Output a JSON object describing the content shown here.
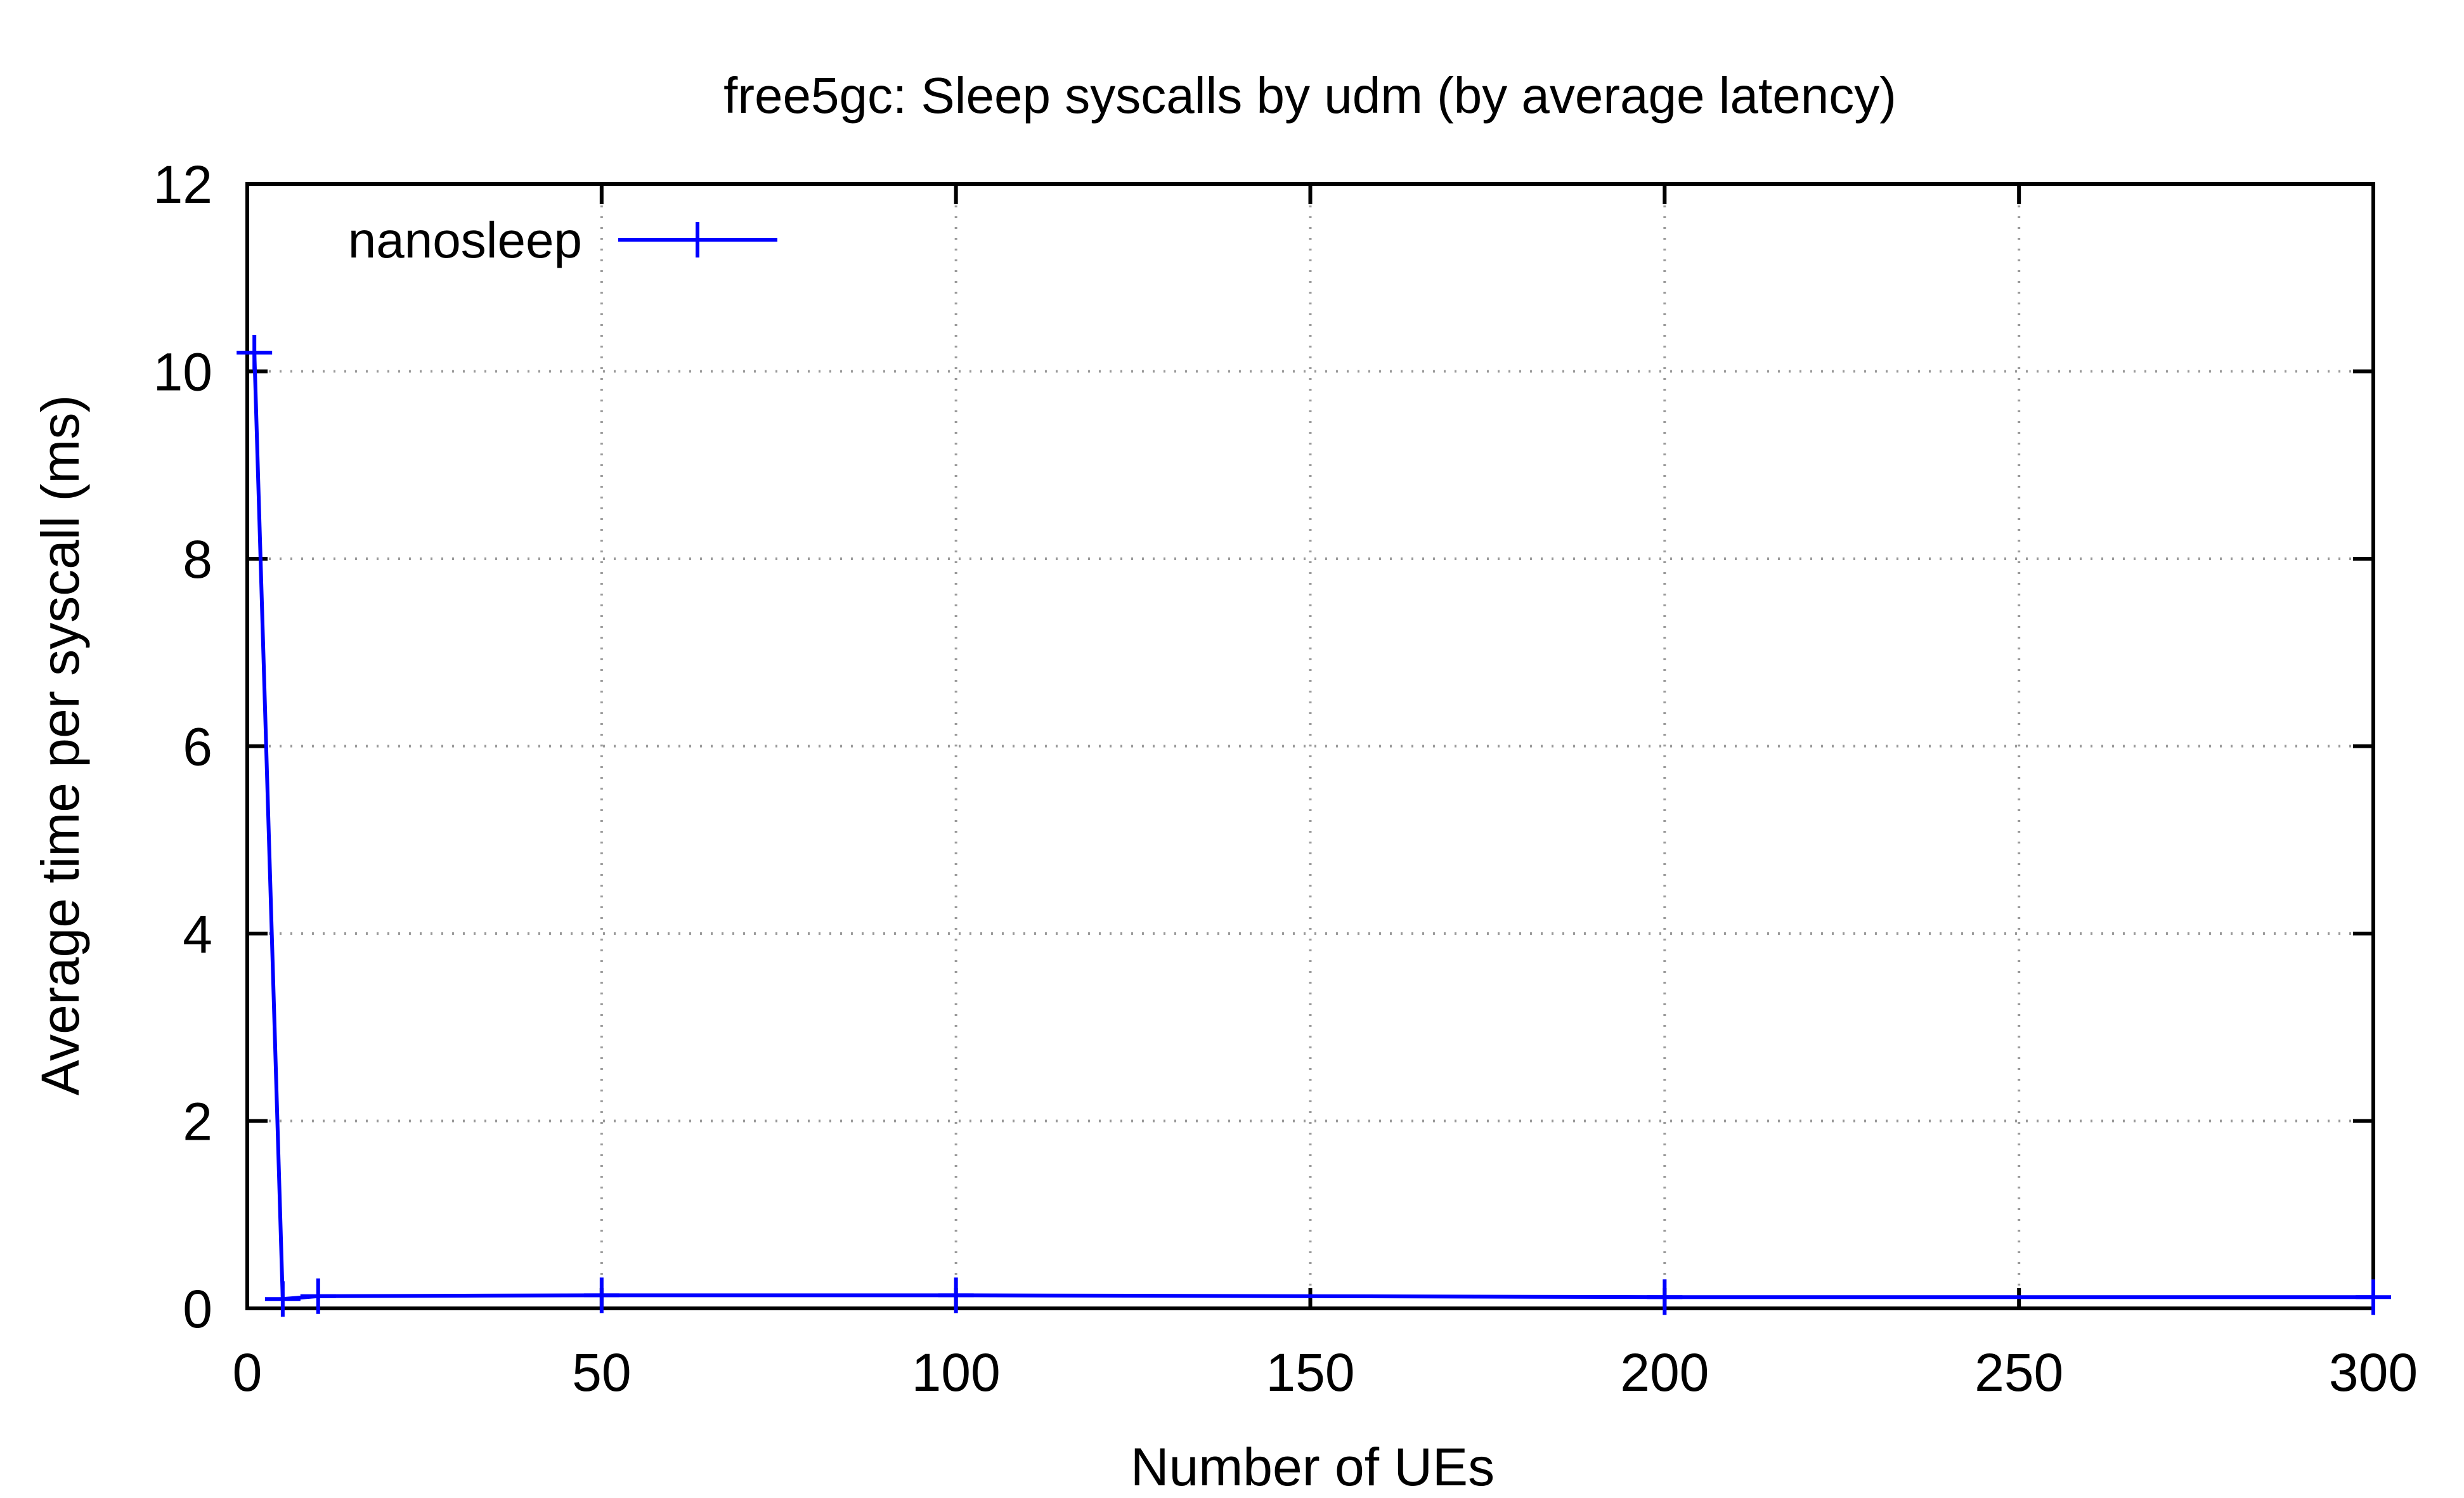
{
  "chart_data": {
    "type": "line",
    "title": "free5gc: Sleep syscalls by udm (by average latency)",
    "xlabel": "Number of UEs",
    "ylabel": "Average time per syscall (ms)",
    "xlim": [
      0,
      300
    ],
    "ylim": [
      0,
      12
    ],
    "xticks": [
      0,
      50,
      100,
      150,
      200,
      250,
      300
    ],
    "yticks": [
      0,
      2,
      4,
      6,
      8,
      10,
      12
    ],
    "grid": true,
    "legend_position": "top-left",
    "series": [
      {
        "name": "nanosleep",
        "color": "#0000ff",
        "marker": "plus",
        "x": [
          1,
          5,
          10,
          50,
          100,
          200,
          300
        ],
        "y": [
          10.2,
          0.1,
          0.13,
          0.14,
          0.14,
          0.12,
          0.12
        ]
      }
    ]
  }
}
